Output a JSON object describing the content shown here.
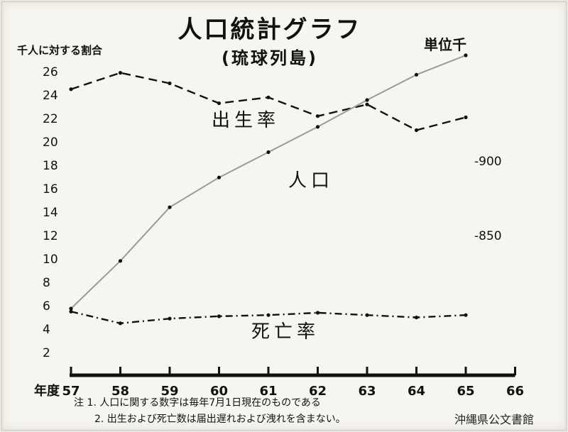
{
  "header": {
    "title": "人口統計グラフ",
    "subtitle": "(琉球列島)",
    "y_unit": "千人に対する割合",
    "unit": "単位千"
  },
  "notes": {
    "line1": "注  1. 人口に関する数字は毎年7月1日現在のものである",
    "line2": "2. 出生および死亡数は届出遅れおよび洩れを含まない。"
  },
  "archive_label": "沖縄県公文書館",
  "chart_data": {
    "type": "line",
    "x_axis_label": "年度",
    "categories": [
      "57",
      "58",
      "59",
      "60",
      "61",
      "62",
      "63",
      "64",
      "65",
      "66"
    ],
    "y_ticks": [
      "2",
      "4",
      "6",
      "8",
      "10",
      "12",
      "14",
      "16",
      "18",
      "20",
      "22",
      "24",
      "26"
    ],
    "ylim": [
      0,
      27
    ],
    "right_axis_labels": [
      {
        "label": "-900",
        "value": 900
      },
      {
        "label": "-850",
        "value": 850
      }
    ],
    "series": [
      {
        "name": "出生率",
        "style": "dashed",
        "color": "#111111",
        "x": [
          "57",
          "58",
          "59",
          "60",
          "61",
          "62",
          "63",
          "64",
          "65"
        ],
        "values": [
          24.5,
          25.9,
          25.0,
          23.3,
          23.8,
          22.2,
          23.2,
          21.0,
          22.1
        ]
      },
      {
        "name": "死亡率",
        "style": "dashdot",
        "color": "#111111",
        "x": [
          "57",
          "58",
          "59",
          "60",
          "61",
          "62",
          "63",
          "64",
          "65"
        ],
        "values": [
          5.5,
          4.5,
          4.9,
          5.1,
          5.2,
          5.4,
          5.2,
          5.0,
          5.2
        ]
      },
      {
        "name": "人口",
        "style": "solid",
        "color": "#9a9a9a",
        "x": [
          "57",
          "58",
          "59",
          "60",
          "61",
          "62",
          "63",
          "64",
          "65"
        ],
        "values": [
          801,
          833,
          869,
          889,
          906,
          923,
          941,
          958,
          971
        ]
      }
    ],
    "line_labels": [
      {
        "series": "出生率",
        "text": "出生率"
      },
      {
        "series": "人口",
        "text": "人口"
      },
      {
        "series": "死亡率",
        "text": "死亡率"
      }
    ],
    "grid": false,
    "legend": "none"
  }
}
